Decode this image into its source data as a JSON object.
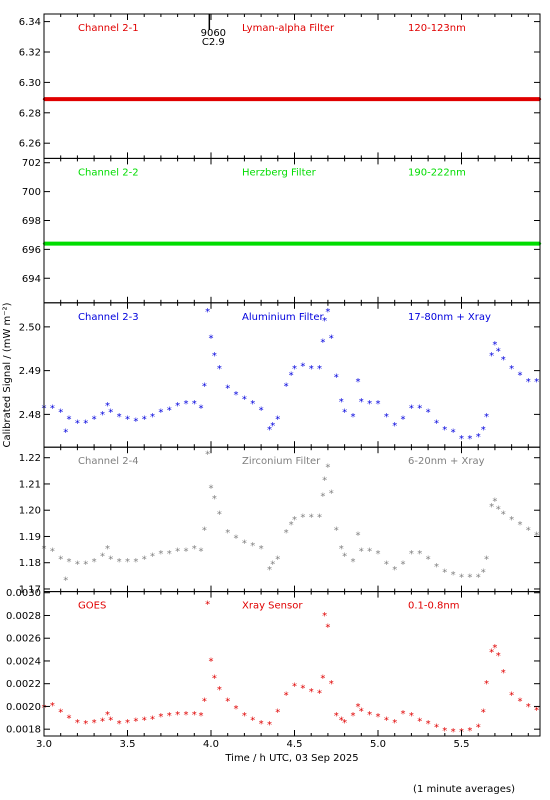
{
  "figure": {
    "xlabel": "Time / h UTC, 03 Sep 2025",
    "ylabel": "Calibrated Signal / (mW m⁻²)",
    "footnote": "(1 minute averages)",
    "xlim": [
      3.0,
      5.97
    ],
    "xticks": [
      "3.0",
      "3.5",
      "4.0",
      "4.5",
      "5.0",
      "5.5"
    ],
    "xtick_values": [
      3.0,
      3.5,
      4.0,
      4.5,
      5.0,
      5.5
    ],
    "marker_annotation": [
      "9060",
      "C2.9"
    ],
    "marker_x": 3.99
  },
  "chart_data": [
    {
      "type": "scatter",
      "channel": "Channel 2-1",
      "filter": "Lyman-alpha Filter",
      "band": "120-123nm",
      "color": "#e00000",
      "ylim": [
        6.25,
        6.345
      ],
      "yticks": [
        "6.26",
        "6.28",
        "6.30",
        "6.32",
        "6.34"
      ],
      "ytick_values": [
        6.26,
        6.28,
        6.3,
        6.32,
        6.34
      ],
      "series": [
        {
          "x": [
            3.0,
            3.25,
            3.5,
            3.75,
            4.0,
            4.25,
            4.5,
            4.75,
            5.0,
            5.25,
            5.5,
            5.75,
            5.97
          ],
          "y": [
            6.289,
            6.289,
            6.289,
            6.289,
            6.289,
            6.289,
            6.289,
            6.289,
            6.289,
            6.289,
            6.289,
            6.289,
            6.289
          ]
        }
      ]
    },
    {
      "type": "scatter",
      "channel": "Channel 2-2",
      "filter": "Herzberg Filter",
      "band": "190-222nm",
      "color": "#00dd00",
      "ylim": [
        692.3,
        702.3
      ],
      "yticks": [
        "694",
        "696",
        "698",
        "700",
        "702"
      ],
      "ytick_values": [
        694,
        696,
        698,
        700,
        702
      ],
      "series": [
        {
          "x": [
            3.0,
            3.25,
            3.5,
            3.75,
            4.0,
            4.25,
            4.5,
            4.75,
            5.0,
            5.25,
            5.5,
            5.75,
            5.97
          ],
          "y": [
            696.4,
            696.4,
            696.4,
            696.4,
            696.4,
            696.4,
            696.4,
            696.4,
            696.4,
            696.4,
            696.4,
            696.4,
            696.4
          ]
        }
      ]
    },
    {
      "type": "scatter",
      "channel": "Channel 2-3",
      "filter": "Aluminium Filter",
      "band": "17-80nm + Xray",
      "color": "#0000dd",
      "ylim": [
        2.4725,
        2.5055
      ],
      "yticks": [
        "2.48",
        "2.49",
        "2.50"
      ],
      "ytick_values": [
        2.48,
        2.49,
        2.5
      ],
      "series": [
        {
          "x": [
            3.0,
            3.05,
            3.1,
            3.13,
            3.15,
            3.2,
            3.25,
            3.3,
            3.35,
            3.38,
            3.4,
            3.45,
            3.5,
            3.55,
            3.6,
            3.65,
            3.7,
            3.75,
            3.8,
            3.85,
            3.9,
            3.94,
            3.96,
            3.98,
            4.0,
            4.02,
            4.05,
            4.1,
            4.15,
            4.2,
            4.25,
            4.3,
            4.35,
            4.37,
            4.4,
            4.45,
            4.48,
            4.5,
            4.55,
            4.6,
            4.65,
            4.67,
            4.68,
            4.7,
            4.72,
            4.75,
            4.78,
            4.8,
            4.85,
            4.88,
            4.9,
            4.95,
            5.0,
            5.05,
            5.1,
            5.15,
            5.2,
            5.25,
            5.3,
            5.35,
            5.4,
            5.45,
            5.5,
            5.55,
            5.6,
            5.63,
            5.65,
            5.68,
            5.7,
            5.72,
            5.75,
            5.8,
            5.85,
            5.9,
            5.95
          ],
          "y": [
            2.4815,
            2.4815,
            2.4805,
            2.476,
            2.479,
            2.478,
            2.478,
            2.479,
            2.48,
            2.482,
            2.4805,
            2.4795,
            2.479,
            2.4785,
            2.479,
            2.4795,
            2.4805,
            2.481,
            2.482,
            2.4825,
            2.4825,
            2.4815,
            2.4865,
            2.5035,
            2.4975,
            2.4935,
            2.4905,
            2.486,
            2.4845,
            2.4835,
            2.4825,
            2.481,
            2.4765,
            2.4775,
            2.479,
            2.4865,
            2.489,
            2.4905,
            2.491,
            2.4905,
            2.4905,
            2.4965,
            2.5015,
            2.5035,
            2.4975,
            2.4885,
            2.483,
            2.4805,
            2.4795,
            2.4875,
            2.483,
            2.4825,
            2.4825,
            2.4795,
            2.4775,
            2.479,
            2.4815,
            2.4815,
            2.4805,
            2.478,
            2.4765,
            2.476,
            2.4745,
            2.4745,
            2.475,
            2.4765,
            2.4795,
            2.4935,
            2.496,
            2.4945,
            2.4925,
            2.4905,
            2.489,
            2.4875,
            2.4875
          ]
        }
      ]
    },
    {
      "type": "scatter",
      "channel": "Channel 2-4",
      "filter": "Zirconium Filter",
      "band": "6-20nm + Xray",
      "color": "#808080",
      "ylim": [
        1.169,
        1.224
      ],
      "yticks": [
        "1.17",
        "1.18",
        "1.19",
        "1.20",
        "1.21",
        "1.22"
      ],
      "ytick_values": [
        1.17,
        1.18,
        1.19,
        1.2,
        1.21,
        1.22
      ],
      "series": [
        {
          "x": [
            3.0,
            3.05,
            3.1,
            3.13,
            3.15,
            3.2,
            3.25,
            3.3,
            3.35,
            3.38,
            3.4,
            3.45,
            3.5,
            3.55,
            3.6,
            3.65,
            3.7,
            3.75,
            3.8,
            3.85,
            3.9,
            3.94,
            3.96,
            3.98,
            4.0,
            4.02,
            4.05,
            4.1,
            4.15,
            4.2,
            4.25,
            4.3,
            4.35,
            4.37,
            4.4,
            4.45,
            4.48,
            4.5,
            4.55,
            4.6,
            4.65,
            4.67,
            4.68,
            4.7,
            4.72,
            4.75,
            4.78,
            4.8,
            4.85,
            4.88,
            4.9,
            4.95,
            5.0,
            5.05,
            5.1,
            5.15,
            5.2,
            5.25,
            5.3,
            5.35,
            5.4,
            5.45,
            5.5,
            5.55,
            5.6,
            5.63,
            5.65,
            5.68,
            5.7,
            5.72,
            5.75,
            5.8,
            5.85,
            5.9,
            5.95
          ],
          "y": [
            1.1855,
            1.1845,
            1.1815,
            1.1735,
            1.1805,
            1.1795,
            1.1795,
            1.1805,
            1.1825,
            1.1855,
            1.1815,
            1.1805,
            1.1805,
            1.1805,
            1.1815,
            1.1825,
            1.1835,
            1.1835,
            1.1845,
            1.1845,
            1.1855,
            1.1845,
            1.1925,
            1.2215,
            1.2085,
            1.2045,
            1.1985,
            1.1915,
            1.1895,
            1.1875,
            1.1865,
            1.1855,
            1.1775,
            1.1795,
            1.1815,
            1.1915,
            1.1945,
            1.1965,
            1.1975,
            1.1975,
            1.1975,
            1.2055,
            1.2115,
            1.2165,
            1.2065,
            1.1925,
            1.1855,
            1.1825,
            1.1805,
            1.1905,
            1.1845,
            1.1845,
            1.1835,
            1.1795,
            1.1775,
            1.1795,
            1.1835,
            1.1835,
            1.1815,
            1.1785,
            1.1765,
            1.1755,
            1.1745,
            1.1745,
            1.1745,
            1.1765,
            1.1815,
            1.2015,
            1.2035,
            1.2005,
            1.1985,
            1.1965,
            1.1945,
            1.1925,
            1.1905
          ]
        }
      ]
    },
    {
      "type": "scatter",
      "channel": "GOES",
      "filter": "Xray Sensor",
      "band": "0.1-0.8nm",
      "color": "#e00000",
      "ylim": [
        0.00174,
        0.00301
      ],
      "yticks": [
        "0.0018",
        "0.0020",
        "0.0022",
        "0.0024",
        "0.0026",
        "0.0028",
        "0.0030"
      ],
      "ytick_values": [
        0.0018,
        0.002,
        0.0022,
        0.0024,
        0.0026,
        0.0028,
        0.003
      ],
      "series": [
        {
          "x": [
            3.0,
            3.05,
            3.1,
            3.15,
            3.2,
            3.25,
            3.3,
            3.35,
            3.38,
            3.4,
            3.45,
            3.5,
            3.55,
            3.6,
            3.65,
            3.7,
            3.75,
            3.8,
            3.85,
            3.9,
            3.94,
            3.96,
            3.98,
            4.0,
            4.02,
            4.05,
            4.1,
            4.15,
            4.2,
            4.25,
            4.3,
            4.35,
            4.4,
            4.45,
            4.5,
            4.55,
            4.6,
            4.65,
            4.67,
            4.68,
            4.7,
            4.72,
            4.75,
            4.78,
            4.8,
            4.85,
            4.88,
            4.9,
            4.95,
            5.0,
            5.05,
            5.1,
            5.15,
            5.2,
            5.25,
            5.3,
            5.35,
            5.4,
            5.45,
            5.5,
            5.55,
            5.6,
            5.63,
            5.65,
            5.68,
            5.7,
            5.72,
            5.75,
            5.8,
            5.85,
            5.9,
            5.95
          ],
          "y": [
            0.00199,
            0.00201,
            0.00195,
            0.0019,
            0.00186,
            0.00185,
            0.00186,
            0.00187,
            0.00193,
            0.00188,
            0.00185,
            0.00186,
            0.00187,
            0.00188,
            0.00189,
            0.00191,
            0.00192,
            0.00193,
            0.00193,
            0.00193,
            0.00192,
            0.00205,
            0.0029,
            0.0024,
            0.00225,
            0.00215,
            0.00205,
            0.00198,
            0.00192,
            0.00188,
            0.00185,
            0.00184,
            0.00195,
            0.0021,
            0.00218,
            0.00216,
            0.00213,
            0.00212,
            0.00225,
            0.0028,
            0.0027,
            0.0022,
            0.00192,
            0.00188,
            0.00186,
            0.00192,
            0.002,
            0.00196,
            0.00193,
            0.00191,
            0.00188,
            0.00186,
            0.00194,
            0.00192,
            0.00187,
            0.00185,
            0.00182,
            0.00179,
            0.00178,
            0.00178,
            0.00179,
            0.00182,
            0.00195,
            0.0022,
            0.00248,
            0.00252,
            0.00245,
            0.0023,
            0.0021,
            0.00205,
            0.002,
            0.00197
          ]
        }
      ]
    }
  ]
}
